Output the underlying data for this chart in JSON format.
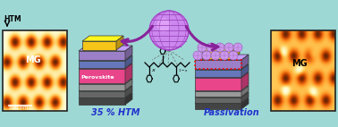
{
  "background_color": "#9ED8D5",
  "left_afm_label": "HTM",
  "left_afm_sublabel": "MG",
  "left_afm_scale": "500 nm",
  "right_afm_label": "MG",
  "label_35htm": "35 % HTM",
  "label_passivation": "Passivation",
  "label_perovskite": "Perovskite",
  "layer_colors": {
    "gold": "#F5C518",
    "purple_htl": "#9B7FC7",
    "blue_etl": "#6677BB",
    "pink_perovskite": "#E8458A",
    "gray1": "#CCCCCC",
    "gray2": "#999999",
    "dark_gray": "#666666",
    "darkest_gray": "#444444"
  },
  "sphere_color": "#CC88EE",
  "sphere_edge": "#AA44CC",
  "sphere_grid": "#9944BB",
  "arrow_color": "#882299",
  "italic_color": "#2233CC",
  "mg_particle_color": "#CC99EE",
  "mg_particle_edge": "#9966BB"
}
